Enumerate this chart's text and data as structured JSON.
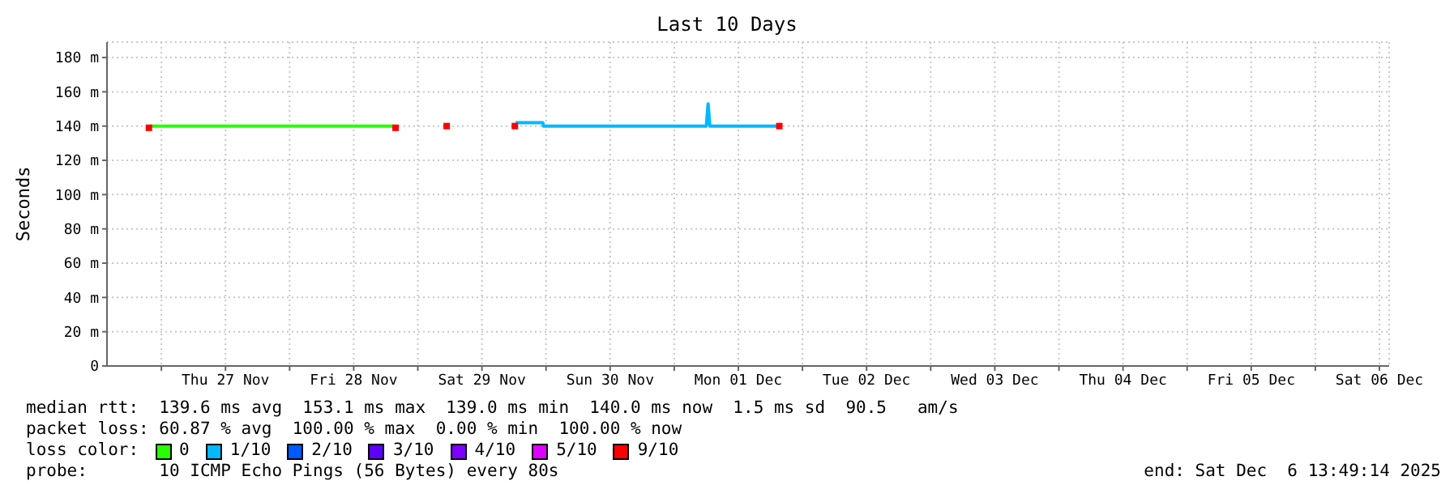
{
  "chart_data": {
    "type": "line",
    "title": "Last 10 Days",
    "ylabel": "Seconds",
    "legend_title": "loss color:",
    "legend": "bottom",
    "grid": true,
    "marker": "none",
    "line_style": "solid",
    "xlim": [
      "--11-26T13:49",
      "--12-06T13:49"
    ],
    "xticks": [
      {
        "value": "--11-27T00:00",
        "label": null
      },
      {
        "value": "--11-27T12:00",
        "label": "Thu 27 Nov"
      },
      {
        "value": "--11-28T00:00",
        "label": null
      },
      {
        "value": "--11-28T12:00",
        "label": "Fri 28 Nov"
      },
      {
        "value": "--11-29T00:00",
        "label": null
      },
      {
        "value": "--11-29T12:00",
        "label": "Sat 29 Nov"
      },
      {
        "value": "--11-30T00:00",
        "label": null
      },
      {
        "value": "--11-30T12:00",
        "label": "Sun 30 Nov"
      },
      {
        "value": "--12-01T00:00",
        "label": null
      },
      {
        "value": "--12-01T12:00",
        "label": "Mon 01 Dec"
      },
      {
        "value": "--12-02T00:00",
        "label": null
      },
      {
        "value": "--12-02T12:00",
        "label": "Tue 02 Dec"
      },
      {
        "value": "--12-03T00:00",
        "label": null
      },
      {
        "value": "--12-03T12:00",
        "label": "Wed 03 Dec"
      },
      {
        "value": "--12-04T00:00",
        "label": null
      },
      {
        "value": "--12-04T12:00",
        "label": "Thu 04 Dec"
      },
      {
        "value": "--12-05T00:00",
        "label": null
      },
      {
        "value": "--12-05T12:00",
        "label": "Fri 05 Dec"
      },
      {
        "value": "--12-06T00:00",
        "label": null
      },
      {
        "value": "--12-06T12:00",
        "label": "Sat 06 Dec"
      }
    ],
    "ylim": [
      0,
      189
    ],
    "yticks": [
      0,
      {
        "value": 20,
        "label": "20 m"
      },
      {
        "value": 40,
        "label": "40 m"
      },
      {
        "value": 60,
        "label": "60 m"
      },
      {
        "value": 80,
        "label": "80 m"
      },
      {
        "value": 100,
        "label": "100 m"
      },
      {
        "value": 120,
        "label": "120 m"
      },
      {
        "value": 140,
        "label": "140 m"
      },
      {
        "value": 160,
        "label": "160 m"
      },
      {
        "value": 180,
        "label": "180 m"
      }
    ],
    "series": [
      {
        "name": "0",
        "color": "#26ff00",
        "x": [
          "--11-26T22:00",
          "--11-28T19:30"
        ],
        "values": [
          140,
          140
        ]
      },
      {
        "name": "1/10",
        "color": "#00b8ff",
        "x": [
          "--11-29T18:18",
          "--11-29T23:24",
          "--11-29T23:30",
          "--12-01T06:00",
          "--12-01T06:20",
          "--12-01T06:40",
          "--12-01T19:20"
        ],
        "values": [
          142,
          142,
          140,
          140,
          153,
          140,
          140
        ]
      },
      {
        "name": "2/10",
        "color": "#0059ff"
      },
      {
        "name": "3/10",
        "color": "#5e00ff"
      },
      {
        "name": "4/10",
        "color": "#7e00ff"
      },
      {
        "name": "5/10",
        "color": "#dd00ff"
      },
      {
        "name": "9/10",
        "color": "#ff0000",
        "type": "scatter",
        "marker": "square",
        "x": [
          "--11-26T21:40",
          "--11-28T19:50",
          "--11-29T05:24",
          "--11-29T18:10",
          "--12-01T19:40"
        ],
        "values": [
          139,
          139,
          140,
          140,
          140
        ]
      }
    ],
    "annotations": [
      "median rtt:  139.6 ms avg  153.1 ms max  139.0 ms min  140.0 ms now  1.5 ms sd  90.5   am/s",
      "packet loss: 60.87 % avg  100.00 % max  0.00 % min  100.00 % now",
      "probe:       10 ICMP Echo Pings (56 Bytes) every 80s",
      "end: Sat Dec  6 13:49:14 2025"
    ]
  }
}
